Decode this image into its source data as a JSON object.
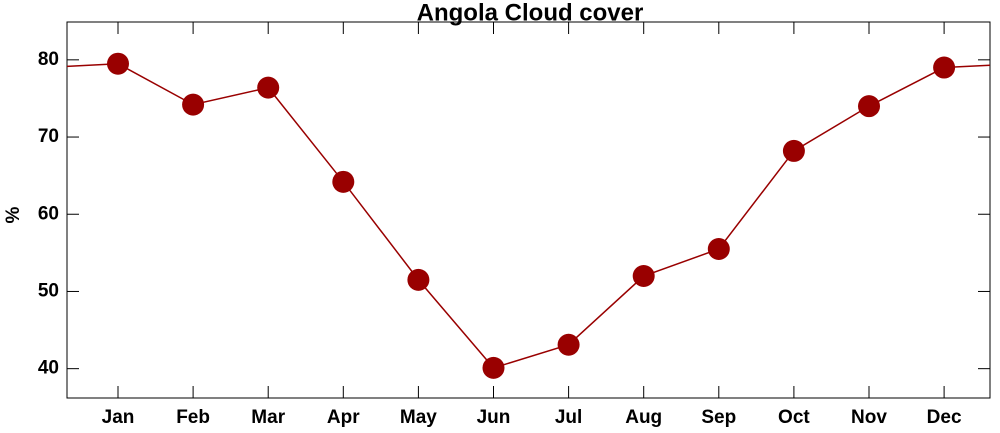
{
  "chart_data": {
    "type": "line",
    "title": "Angola Cloud cover",
    "y_label": "%",
    "categories": [
      "Jan",
      "Feb",
      "Mar",
      "Apr",
      "May",
      "Jun",
      "Jul",
      "Aug",
      "Sep",
      "Oct",
      "Nov",
      "Dec"
    ],
    "series": [
      {
        "name": "Cloud cover",
        "color": "#990000",
        "values": [
          79.5,
          74.2,
          76.4,
          64.2,
          51.5,
          40.1,
          43.1,
          52.0,
          55.5,
          68.2,
          74.0,
          79.0
        ]
      }
    ],
    "ylim": [
      36.2,
      84.9
    ],
    "yticks": [
      40,
      50,
      60,
      70,
      80
    ],
    "grid": false
  }
}
